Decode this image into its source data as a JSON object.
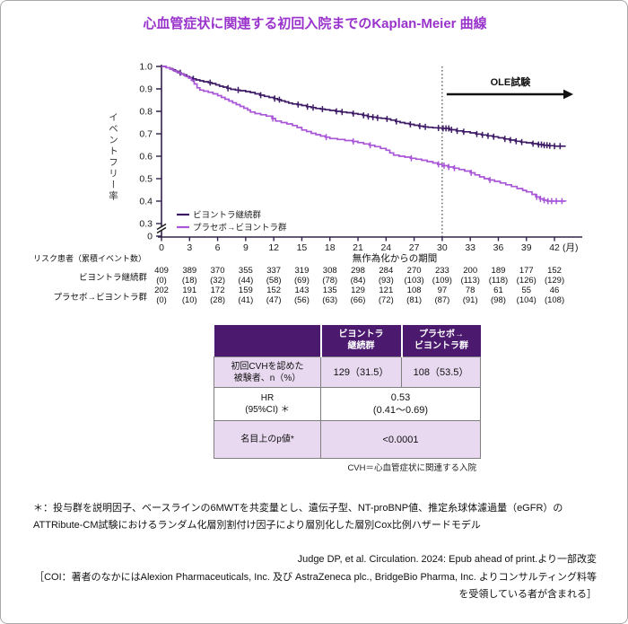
{
  "title": "心血管症状に関連する初回入院までのKaplan-Meier 曲線",
  "colors": {
    "title": "#9933cc",
    "continuous_series": "#3d1a66",
    "placebo_series": "#a855d8",
    "axis": "#33204a",
    "table_header_bg": "#4b1a6e",
    "table_shade_bg": "#e8d9f0"
  },
  "chart_data": {
    "type": "line",
    "subtype": "kaplan-meier-step",
    "ylabel": "イベントフリー率",
    "xlabel": "無作為化からの期間",
    "x_unit": "(月)",
    "x_ticks": [
      0,
      3,
      6,
      9,
      12,
      15,
      18,
      21,
      24,
      27,
      30,
      33,
      36,
      39,
      42
    ],
    "y_ticks": [
      1.0,
      0.9,
      0.8,
      0.7,
      0.6,
      0.5,
      0.4,
      0.3
    ],
    "y_zero_label": "0",
    "y_axis_break": true,
    "grid": false,
    "ole_label": "OLE試験",
    "ole_start_month": 30,
    "legend_position": "lower-left",
    "series": [
      {
        "name": "ビヨントラ継続群",
        "color": "#3d1a66",
        "points": [
          [
            0,
            1.0
          ],
          [
            0.5,
            0.995
          ],
          [
            0.9,
            0.99
          ],
          [
            1.2,
            0.985
          ],
          [
            1.5,
            0.978
          ],
          [
            1.8,
            0.972
          ],
          [
            2.1,
            0.967
          ],
          [
            2.4,
            0.962
          ],
          [
            2.7,
            0.955
          ],
          [
            3.0,
            0.95
          ],
          [
            3.3,
            0.945
          ],
          [
            3.7,
            0.94
          ],
          [
            4.1,
            0.936
          ],
          [
            4.5,
            0.932
          ],
          [
            5.0,
            0.928
          ],
          [
            5.4,
            0.924
          ],
          [
            5.8,
            0.918
          ],
          [
            6.2,
            0.912
          ],
          [
            6.6,
            0.908
          ],
          [
            7.0,
            0.903
          ],
          [
            7.4,
            0.898
          ],
          [
            7.9,
            0.895
          ],
          [
            8.4,
            0.892
          ],
          [
            9.0,
            0.888
          ],
          [
            9.5,
            0.884
          ],
          [
            10.0,
            0.878
          ],
          [
            10.5,
            0.872
          ],
          [
            11.0,
            0.867
          ],
          [
            11.5,
            0.862
          ],
          [
            12.0,
            0.857
          ],
          [
            12.4,
            0.852
          ],
          [
            12.8,
            0.847
          ],
          [
            13.2,
            0.842
          ],
          [
            13.6,
            0.837
          ],
          [
            14.0,
            0.833
          ],
          [
            14.5,
            0.83
          ],
          [
            15.0,
            0.826
          ],
          [
            15.5,
            0.821
          ],
          [
            16.0,
            0.817
          ],
          [
            16.5,
            0.813
          ],
          [
            17.0,
            0.81
          ],
          [
            17.5,
            0.807
          ],
          [
            18.0,
            0.804
          ],
          [
            18.6,
            0.8
          ],
          [
            19.2,
            0.797
          ],
          [
            19.8,
            0.794
          ],
          [
            20.4,
            0.79
          ],
          [
            21.0,
            0.787
          ],
          [
            21.5,
            0.782
          ],
          [
            22.0,
            0.777
          ],
          [
            22.5,
            0.774
          ],
          [
            23.0,
            0.771
          ],
          [
            23.5,
            0.769
          ],
          [
            24.0,
            0.766
          ],
          [
            24.5,
            0.761
          ],
          [
            25.0,
            0.755
          ],
          [
            25.5,
            0.75
          ],
          [
            26.0,
            0.746
          ],
          [
            26.5,
            0.742
          ],
          [
            27.0,
            0.738
          ],
          [
            27.5,
            0.734
          ],
          [
            28.0,
            0.731
          ],
          [
            28.5,
            0.729
          ],
          [
            29.0,
            0.727
          ],
          [
            29.5,
            0.726
          ],
          [
            30.0,
            0.724
          ],
          [
            30.8,
            0.718
          ],
          [
            31.5,
            0.713
          ],
          [
            32.2,
            0.709
          ],
          [
            33.0,
            0.704
          ],
          [
            33.6,
            0.699
          ],
          [
            34.2,
            0.695
          ],
          [
            34.8,
            0.691
          ],
          [
            35.4,
            0.687
          ],
          [
            36.0,
            0.682
          ],
          [
            36.6,
            0.677
          ],
          [
            37.2,
            0.672
          ],
          [
            37.8,
            0.667
          ],
          [
            38.4,
            0.663
          ],
          [
            39.0,
            0.66
          ],
          [
            39.6,
            0.656
          ],
          [
            40.2,
            0.652
          ],
          [
            40.8,
            0.649
          ],
          [
            41.4,
            0.647
          ],
          [
            42.0,
            0.645
          ],
          [
            43.2,
            0.645
          ]
        ],
        "censor_months": [
          2.0,
          3.4,
          5.2,
          7.1,
          8.2,
          10.6,
          12.1,
          12.6,
          14.6,
          15.6,
          16.2,
          17.2,
          18.7,
          19.3,
          20.5,
          21.6,
          22.1,
          22.6,
          23.1,
          24.1,
          25.1,
          26.6,
          27.6,
          28.2,
          29.6,
          30.1,
          30.4,
          30.7,
          31.0,
          31.6,
          32.3,
          33.7,
          34.3,
          34.9,
          35.5,
          36.7,
          37.3,
          37.9,
          38.5,
          39.7,
          40.3,
          40.6,
          40.9,
          41.2,
          41.5,
          42.0,
          42.6
        ]
      },
      {
        "name": "プラセボ→ビヨントラ群",
        "color": "#a855d8",
        "points": [
          [
            0,
            1.0
          ],
          [
            0.5,
            0.995
          ],
          [
            0.9,
            0.988
          ],
          [
            1.3,
            0.98
          ],
          [
            1.7,
            0.972
          ],
          [
            2.1,
            0.965
          ],
          [
            2.5,
            0.957
          ],
          [
            2.9,
            0.948
          ],
          [
            3.2,
            0.938
          ],
          [
            3.5,
            0.922
          ],
          [
            3.8,
            0.905
          ],
          [
            4.1,
            0.895
          ],
          [
            4.5,
            0.89
          ],
          [
            5.0,
            0.885
          ],
          [
            5.5,
            0.878
          ],
          [
            6.0,
            0.87
          ],
          [
            6.4,
            0.862
          ],
          [
            6.8,
            0.854
          ],
          [
            7.2,
            0.846
          ],
          [
            7.6,
            0.838
          ],
          [
            8.0,
            0.83
          ],
          [
            8.4,
            0.822
          ],
          [
            8.8,
            0.814
          ],
          [
            9.2,
            0.806
          ],
          [
            9.5,
            0.797
          ],
          [
            10.0,
            0.79
          ],
          [
            10.6,
            0.785
          ],
          [
            11.2,
            0.779
          ],
          [
            11.8,
            0.768
          ],
          [
            12.2,
            0.757
          ],
          [
            12.8,
            0.75
          ],
          [
            13.4,
            0.744
          ],
          [
            14.0,
            0.737
          ],
          [
            14.5,
            0.728
          ],
          [
            15.0,
            0.717
          ],
          [
            15.5,
            0.71
          ],
          [
            16.0,
            0.702
          ],
          [
            16.5,
            0.696
          ],
          [
            17.0,
            0.69
          ],
          [
            17.5,
            0.685
          ],
          [
            18.0,
            0.679
          ],
          [
            18.8,
            0.675
          ],
          [
            19.6,
            0.67
          ],
          [
            20.4,
            0.666
          ],
          [
            21.0,
            0.661
          ],
          [
            21.6,
            0.655
          ],
          [
            22.2,
            0.649
          ],
          [
            22.8,
            0.643
          ],
          [
            23.4,
            0.635
          ],
          [
            24.0,
            0.627
          ],
          [
            24.4,
            0.615
          ],
          [
            24.8,
            0.605
          ],
          [
            25.4,
            0.6
          ],
          [
            26.0,
            0.596
          ],
          [
            26.6,
            0.591
          ],
          [
            27.2,
            0.587
          ],
          [
            27.8,
            0.582
          ],
          [
            28.4,
            0.576
          ],
          [
            29.0,
            0.57
          ],
          [
            29.5,
            0.564
          ],
          [
            30.0,
            0.558
          ],
          [
            30.6,
            0.552
          ],
          [
            31.2,
            0.547
          ],
          [
            31.8,
            0.541
          ],
          [
            32.4,
            0.534
          ],
          [
            33.0,
            0.526
          ],
          [
            33.5,
            0.517
          ],
          [
            34.0,
            0.508
          ],
          [
            34.5,
            0.5
          ],
          [
            35.0,
            0.494
          ],
          [
            35.6,
            0.488
          ],
          [
            36.2,
            0.481
          ],
          [
            36.8,
            0.473
          ],
          [
            37.4,
            0.465
          ],
          [
            38.0,
            0.456
          ],
          [
            38.6,
            0.448
          ],
          [
            39.0,
            0.441
          ],
          [
            39.6,
            0.43
          ],
          [
            40.0,
            0.419
          ],
          [
            40.4,
            0.41
          ],
          [
            40.8,
            0.404
          ],
          [
            41.2,
            0.4
          ],
          [
            43.2,
            0.399
          ]
        ],
        "censor_months": [
          11.9,
          17.6,
          20.5,
          22.3,
          26.7,
          29.6,
          30.2,
          30.7,
          31.3,
          33.1,
          35.1,
          40.1,
          40.5,
          40.9,
          41.3,
          41.7,
          42.2,
          42.8
        ]
      }
    ]
  },
  "risk_table": {
    "row_header": "リスク患者（累積イベント数）",
    "axis_title": "無作為化からの期間",
    "rows": [
      {
        "label": "ビヨントラ継続群",
        "n": [
          409,
          389,
          370,
          355,
          337,
          319,
          308,
          298,
          284,
          270,
          233,
          200,
          189,
          177,
          152
        ],
        "events": [
          0,
          18,
          32,
          44,
          58,
          69,
          78,
          84,
          93,
          103,
          109,
          113,
          118,
          126,
          129
        ]
      },
      {
        "label": "プラセボ→ビヨントラ群",
        "n": [
          202,
          191,
          172,
          159,
          152,
          143,
          135,
          129,
          121,
          108,
          97,
          78,
          61,
          55,
          46
        ],
        "events": [
          0,
          10,
          28,
          41,
          47,
          56,
          63,
          66,
          72,
          81,
          87,
          91,
          98,
          104,
          108
        ]
      }
    ]
  },
  "summary_table": {
    "col_headers": [
      "ビヨントラ\n継続群",
      "プラセボ→\nビヨントラ群"
    ],
    "rows": [
      {
        "label": "初回CVHを認めた\n被験者、n（%）",
        "values": [
          "129（31.5）",
          "108（53.5）"
        ],
        "span": false
      },
      {
        "label": "HR\n(95%CI) ＊",
        "values": [
          "0.53\n(0.41～0.69)"
        ],
        "span": true
      },
      {
        "label": "名目上のp値*",
        "values": [
          "<0.0001"
        ],
        "span": true
      }
    ],
    "footnote": "CVH＝心血管症状に関連する入院"
  },
  "footnotes": {
    "line1": "＊：投与群を説明因子、ベースラインの6MWTを共変量とし、遺伝子型、NT-proBNP値、推定糸球体濾過量（eGFR）の",
    "line2": "ATTRibute-CM試験におけるランダム化層別割付け因子により層別化した層別Cox比例ハザードモデル"
  },
  "citation": {
    "line1": "Judge DP, et al. Circulation. 2024: Epub ahead of print.より一部改変",
    "line2": "［COI：著者のなかにはAlexion Pharmaceuticals, Inc. 及び AstraZeneca plc., BridgeBio Pharma, Inc. よりコンサルティング料等",
    "line3": "を受領している者が含まれる］"
  }
}
